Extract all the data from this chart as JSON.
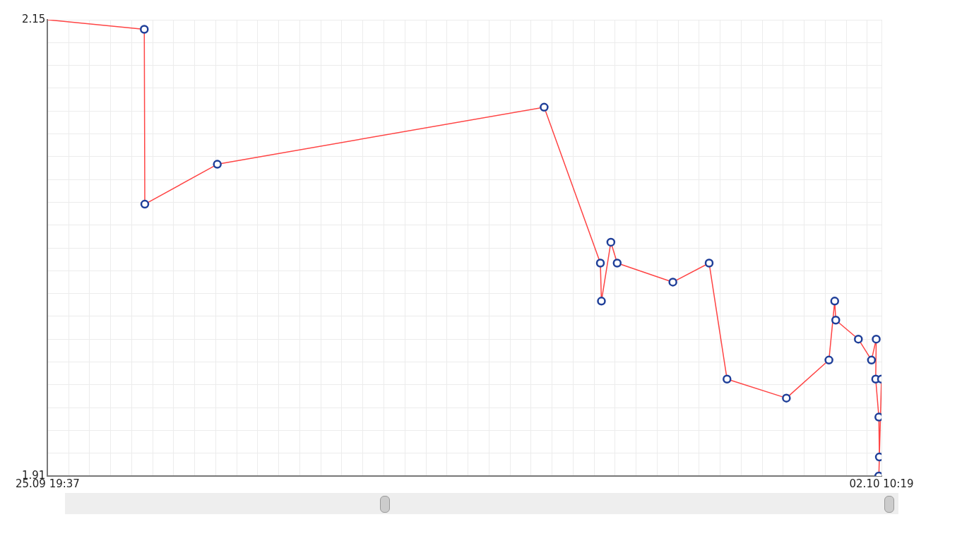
{
  "chart_data": {
    "type": "line",
    "x": [
      "--09-25T19:37",
      "--09-26T14:01",
      "--09-26T14:07",
      "--09-27T03:55",
      "--09-29T18:07",
      "--09-30T04:49",
      "--09-30T05:01",
      "--09-30T06:49",
      "--09-30T08:01",
      "--09-30T18:37",
      "--10-01T01:31",
      "--10-01T04:55",
      "--10-01T16:13",
      "--10-02T00:19",
      "--10-02T01:25",
      "--10-02T01:37",
      "--10-02T05:55",
      "--10-02T08:25",
      "--10-02T09:19",
      "--10-02T09:13",
      "--10-02T09:49",
      "--10-02T09:55",
      "--10-02T09:49",
      "--10-02T10:19"
    ],
    "series": [
      {
        "color": "#ff4444",
        "values": [
          2.15,
          2.145,
          2.053,
          2.074,
          2.104,
          2.022,
          2.002,
          2.033,
          2.022,
          2.012,
          2.022,
          1.961,
          1.951,
          1.971,
          2.002,
          1.992,
          1.982,
          1.971,
          1.982,
          1.961,
          1.941,
          1.92,
          1.91,
          1.961
        ]
      }
    ],
    "xlim": [
      "--09-25T19:37",
      "--10-02T10:19"
    ],
    "xticks": [
      {
        "value": "--09-25T19:37",
        "label": "25.09 19:37"
      },
      {
        "value": "--09-25T23:37",
        "label": null
      },
      {
        "value": "--09-26T03:37",
        "label": null
      },
      {
        "value": "--09-26T07:37",
        "label": null
      },
      {
        "value": "--09-26T11:37",
        "label": null
      },
      {
        "value": "--09-26T15:37",
        "label": null
      },
      {
        "value": "--09-26T19:37",
        "label": null
      },
      {
        "value": "--09-26T23:37",
        "label": null
      },
      {
        "value": "--09-27T03:37",
        "label": null
      },
      {
        "value": "--09-27T07:37",
        "label": null
      },
      {
        "value": "--09-27T11:37",
        "label": null
      },
      {
        "value": "--09-27T15:37",
        "label": null
      },
      {
        "value": "--09-27T19:37",
        "label": null
      },
      {
        "value": "--09-27T23:37",
        "label": null
      },
      {
        "value": "--09-28T03:37",
        "label": null
      },
      {
        "value": "--09-28T07:37",
        "label": null
      },
      {
        "value": "--09-28T11:37",
        "label": null
      },
      {
        "value": "--09-28T15:37",
        "label": null
      },
      {
        "value": "--09-28T19:37",
        "label": null
      },
      {
        "value": "--09-28T23:37",
        "label": null
      },
      {
        "value": "--09-29T03:37",
        "label": null
      },
      {
        "value": "--09-29T07:37",
        "label": null
      },
      {
        "value": "--09-29T11:37",
        "label": null
      },
      {
        "value": "--09-29T15:37",
        "label": null
      },
      {
        "value": "--09-29T19:37",
        "label": null
      },
      {
        "value": "--09-29T23:37",
        "label": null
      },
      {
        "value": "--09-30T03:37",
        "label": null
      },
      {
        "value": "--09-30T07:37",
        "label": null
      },
      {
        "value": "--09-30T11:37",
        "label": null
      },
      {
        "value": "--09-30T15:37",
        "label": null
      },
      {
        "value": "--09-30T19:37",
        "label": null
      },
      {
        "value": "--09-30T23:37",
        "label": null
      },
      {
        "value": "--10-01T03:37",
        "label": null
      },
      {
        "value": "--10-01T07:37",
        "label": null
      },
      {
        "value": "--10-01T11:37",
        "label": null
      },
      {
        "value": "--10-01T15:37",
        "label": null
      },
      {
        "value": "--10-01T19:37",
        "label": null
      },
      {
        "value": "--10-01T23:37",
        "label": null
      },
      {
        "value": "--10-02T03:37",
        "label": null
      },
      {
        "value": "--10-02T07:37",
        "label": null
      },
      {
        "value": "--10-02T10:19",
        "label": "02.10 10:19"
      }
    ],
    "ylim": [
      1.91,
      2.15
    ],
    "yticks": [
      1.91,
      {
        "value": 1.922,
        "label": null
      },
      {
        "value": 1.934,
        "label": null
      },
      {
        "value": 1.946,
        "label": null
      },
      {
        "value": 1.958,
        "label": null
      },
      {
        "value": 1.97,
        "label": null
      },
      {
        "value": 1.982,
        "label": null
      },
      {
        "value": 1.994,
        "label": null
      },
      {
        "value": 2.006,
        "label": null
      },
      {
        "value": 2.018,
        "label": null
      },
      {
        "value": 2.03,
        "label": null
      },
      {
        "value": 2.042,
        "label": null
      },
      {
        "value": 2.054,
        "label": null
      },
      {
        "value": 2.066,
        "label": null
      },
      {
        "value": 2.078,
        "label": null
      },
      {
        "value": 2.09,
        "label": null
      },
      {
        "value": 2.102,
        "label": null
      },
      {
        "value": 2.114,
        "label": null
      },
      {
        "value": 2.126,
        "label": null
      },
      {
        "value": 2.138,
        "label": null
      },
      2.15
    ],
    "grid": true,
    "legend": false,
    "marker": "circle",
    "line_style": "solid"
  }
}
